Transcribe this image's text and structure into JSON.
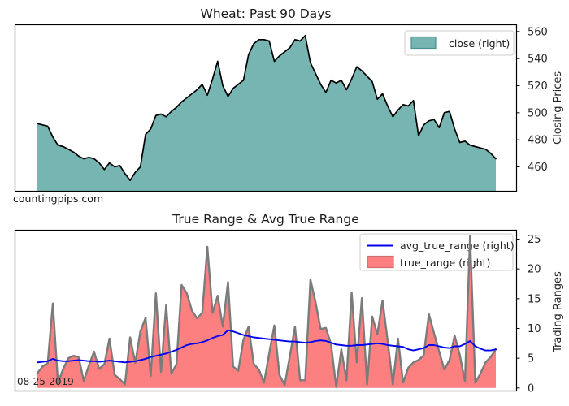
{
  "meta": {
    "watermark": "countingpips.com",
    "background": "#ffffff",
    "spine_color": "#000000",
    "tick_text_color": "#262626"
  },
  "chart_data": [
    {
      "type": "area",
      "title": "Wheat: Past 90 Days",
      "xlabel": "",
      "ylabel": "Closing Prices",
      "yaxis_side": "right",
      "ylim": [
        442,
        565
      ],
      "yticks": [
        460,
        480,
        500,
        520,
        540,
        560
      ],
      "grid": false,
      "n_points": 90,
      "watermark": "countingpips.com",
      "legend": {
        "position": "upper right",
        "entries": [
          {
            "label": "close (right)",
            "swatch": "patch",
            "fill": "#76b5b2",
            "edge": "#4c8f8c"
          }
        ]
      },
      "series": [
        {
          "name": "close",
          "kind": "area",
          "fill": "#76b5b2",
          "line": "#000000",
          "line_width": 1.7,
          "values": [
            492,
            491,
            490,
            482,
            476,
            475,
            473,
            471,
            468,
            466,
            467,
            466,
            463,
            458,
            463,
            460,
            461,
            455,
            450,
            456,
            460,
            484,
            488,
            498,
            499,
            497,
            501,
            504,
            508,
            511,
            514,
            517,
            521,
            513,
            525,
            538,
            520,
            512,
            518,
            521,
            524,
            543,
            551,
            554,
            554,
            553,
            538,
            542,
            545,
            548,
            554,
            553,
            557,
            537,
            529,
            521,
            515,
            524,
            522,
            524,
            517,
            525,
            534,
            531,
            527,
            523,
            510,
            514,
            505,
            497,
            502,
            506,
            505,
            509,
            483,
            491,
            494,
            495,
            489,
            500,
            501,
            488,
            478,
            479,
            476,
            475,
            474,
            473,
            470,
            466
          ]
        }
      ]
    },
    {
      "type": "area",
      "title": "True Range & Avg True Range",
      "xlabel": "",
      "ylabel": "Trading Ranges",
      "yaxis_side": "right",
      "ylim": [
        -0.5,
        26.5
      ],
      "yticks": [
        0,
        5,
        10,
        15,
        20,
        25
      ],
      "grid": false,
      "n_points": 90,
      "annotation": "08-25-2019",
      "legend": {
        "position": "upper right",
        "entries": [
          {
            "label": "avg_true_range (right)",
            "swatch": "line",
            "stroke": "#0000ee"
          },
          {
            "label": "true_range (right)",
            "swatch": "patch",
            "fill": "#fc8080",
            "edge": "#cf6b6b"
          }
        ]
      },
      "series": [
        {
          "name": "true_range",
          "kind": "area",
          "fill": "#fc8080",
          "line": "#7b7b7b",
          "line_width": 2.4,
          "values": [
            2.5,
            3.6,
            4.2,
            14.2,
            0.9,
            3.2,
            5.0,
            5.4,
            5.2,
            1.2,
            3.8,
            6.1,
            3.2,
            4.0,
            8.3,
            2.2,
            1.5,
            0.6,
            8.5,
            4.2,
            9.5,
            11.8,
            2.0,
            15.9,
            2.7,
            13.9,
            2.4,
            4.0,
            17.3,
            15.9,
            13.0,
            11.7,
            12.6,
            23.7,
            12.6,
            15.5,
            10.3,
            17.8,
            3.6,
            2.9,
            8.1,
            10.3,
            4.0,
            3.1,
            0.9,
            5.8,
            10.5,
            2.2,
            0.5,
            5.3,
            10.3,
            1.3,
            1.3,
            18.2,
            14.4,
            9.9,
            10.1,
            7.4,
            0.2,
            6.5,
            1.3,
            16.0,
            4.3,
            15.1,
            0.6,
            12.0,
            9.0,
            14.7,
            7.9,
            0.6,
            8.3,
            0.9,
            3.4,
            4.3,
            4.7,
            5.5,
            12.4,
            9.2,
            6.1,
            3.1,
            4.7,
            8.8,
            5.6,
            1.1,
            25.5,
            0.9,
            2.4,
            4.3,
            5.2,
            6.5
          ]
        },
        {
          "name": "avg_true_range",
          "kind": "line",
          "line": "#0000ee",
          "line_width": 1.9,
          "values": [
            4.3,
            4.4,
            4.5,
            4.9,
            4.6,
            4.5,
            4.5,
            4.6,
            4.7,
            4.6,
            4.5,
            4.5,
            4.4,
            4.5,
            4.6,
            4.5,
            4.4,
            4.3,
            4.4,
            4.5,
            4.7,
            4.9,
            5.2,
            5.4,
            5.6,
            5.8,
            6.1,
            6.4,
            6.8,
            7.2,
            7.4,
            7.5,
            7.7,
            8.0,
            8.4,
            8.7,
            8.9,
            9.7,
            9.5,
            9.2,
            8.9,
            8.7,
            8.5,
            8.4,
            8.3,
            8.2,
            8.1,
            8.0,
            7.9,
            7.8,
            7.8,
            7.7,
            7.6,
            7.7,
            7.9,
            8.0,
            7.9,
            7.6,
            7.3,
            7.2,
            7.1,
            7.1,
            7.2,
            7.2,
            7.3,
            7.4,
            7.5,
            7.4,
            7.2,
            7.1,
            7.0,
            6.9,
            6.5,
            6.3,
            6.5,
            6.7,
            7.2,
            7.2,
            7.0,
            6.8,
            6.7,
            7.0,
            7.0,
            7.4,
            7.9,
            7.0,
            6.6,
            6.3,
            6.3,
            6.5
          ]
        }
      ]
    }
  ]
}
